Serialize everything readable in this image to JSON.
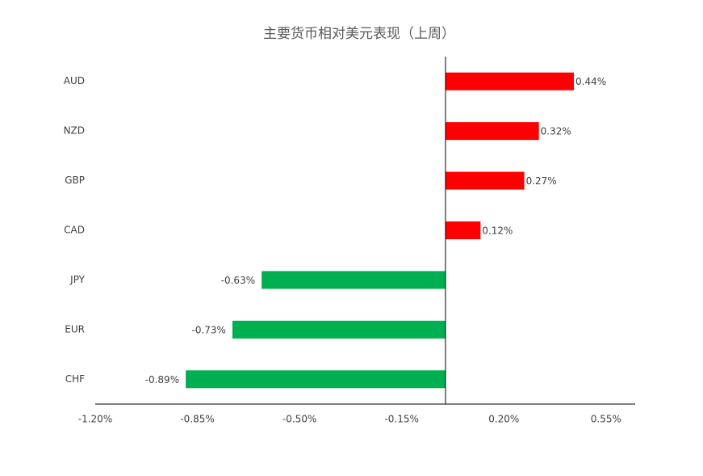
{
  "chart_data": {
    "type": "hbar",
    "title": "主要货币相对美元表现（上周）",
    "categories": [
      "AUD",
      "NZD",
      "GBP",
      "CAD",
      "JPY",
      "EUR",
      "CHF"
    ],
    "values": [
      0.44,
      0.32,
      0.27,
      0.12,
      -0.63,
      -0.73,
      -0.89
    ],
    "value_labels": [
      "0.44%",
      "0.32%",
      "0.27%",
      "0.12%",
      "-0.63%",
      "-0.73%",
      "-0.89%"
    ],
    "colors": [
      "#ff0000",
      "#ff0000",
      "#ff0000",
      "#ff0000",
      "#00b050",
      "#00b050",
      "#00b050"
    ],
    "xlim": [
      -1.2,
      0.65
    ],
    "xticks": [
      {
        "value": -1.2,
        "label": "-1.20%"
      },
      {
        "value": -0.85,
        "label": "-0.85%"
      },
      {
        "value": -0.5,
        "label": "-0.50%"
      },
      {
        "value": -0.15,
        "label": "-0.15%"
      },
      {
        "value": 0.2,
        "label": "0.20%"
      },
      {
        "value": 0.55,
        "label": "0.55%"
      }
    ],
    "grid": false
  }
}
